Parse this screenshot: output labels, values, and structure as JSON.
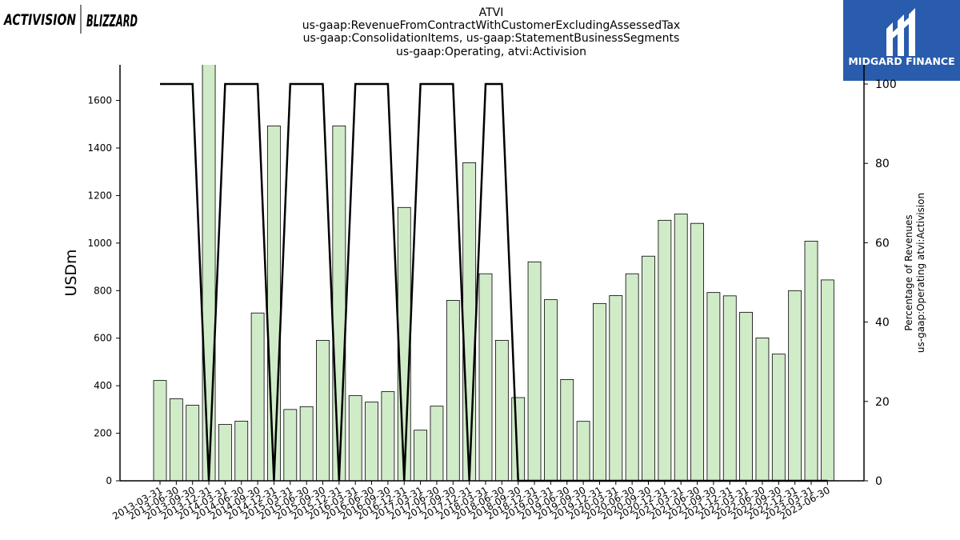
{
  "header": {
    "title_lines": [
      "ATVI",
      "us-gaap:RevenueFromContractWithCustomerExcludingAssessedTax",
      "us-gaap:ConsolidationItems, us-gaap:StatementBusinessSegments",
      "us-gaap:Operating, atvi:Activision"
    ]
  },
  "logos": {
    "left_brand_1": "ACTIVISION",
    "left_brand_2": "BLIZZARD",
    "right_brand": "MIDGARD FINANCE"
  },
  "colors": {
    "bar_fill": "#d0ebc8",
    "bar_edge": "#000000",
    "line": "#000000",
    "logo_bg": "#2a5cad"
  },
  "chart_data": {
    "type": "bar",
    "ylabel": "USDm",
    "ylabel_right": [
      "Percentage of Revenues",
      "us-gaap:Operating atvi:Activision"
    ],
    "ylim": [
      0,
      1750
    ],
    "ylim_right": [
      0,
      100
    ],
    "yticks": [
      0,
      200,
      400,
      600,
      800,
      1000,
      1200,
      1400,
      1600
    ],
    "yticks_right": [
      0,
      20,
      40,
      60,
      80,
      100
    ],
    "grid": false,
    "categories": [
      "2013-03-31",
      "2013-06-30",
      "2013-09-30",
      "2013-12-31",
      "2014-03-31",
      "2014-06-30",
      "2014-09-30",
      "2014-12-31",
      "2015-03-31",
      "2015-06-30",
      "2015-09-30",
      "2015-12-31",
      "2016-03-31",
      "2016-06-30",
      "2016-09-30",
      "2016-12-31",
      "2017-03-31",
      "2017-06-30",
      "2017-09-30",
      "2017-12-31",
      "2018-03-31",
      "2018-06-30",
      "2018-09-30",
      "2018-12-31",
      "2019-03-31",
      "2019-06-30",
      "2019-09-30",
      "2019-12-31",
      "2020-03-31",
      "2020-06-30",
      "2020-09-30",
      "2020-12-31",
      "2021-03-31",
      "2021-06-30",
      "2021-09-30",
      "2021-12-31",
      "2022-03-31",
      "2022-06-30",
      "2022-09-30",
      "2022-12-31",
      "2023-03-31",
      "2023-06-30"
    ],
    "series": [
      {
        "axis": "left",
        "type": "bar",
        "values": [
          422,
          345,
          318,
          1760,
          237,
          251,
          706,
          1493,
          300,
          312,
          591,
          1493,
          358,
          331,
          375,
          1150,
          213,
          314,
          759,
          1338,
          871,
          591,
          350,
          921,
          762,
          426,
          250,
          746,
          779,
          871,
          945,
          1096,
          1122,
          1083,
          792,
          778,
          709,
          601,
          533,
          800,
          1008,
          845
        ]
      },
      {
        "axis": "right",
        "type": "line",
        "values": [
          100,
          100,
          100,
          0,
          100,
          100,
          100,
          0,
          100,
          100,
          100,
          0,
          100,
          100,
          100,
          0,
          100,
          100,
          100,
          0,
          100,
          100,
          0,
          0,
          0,
          0,
          0,
          0,
          0,
          0,
          0,
          0,
          0,
          0,
          0,
          0,
          0,
          0,
          0,
          0,
          0,
          0
        ]
      }
    ]
  }
}
